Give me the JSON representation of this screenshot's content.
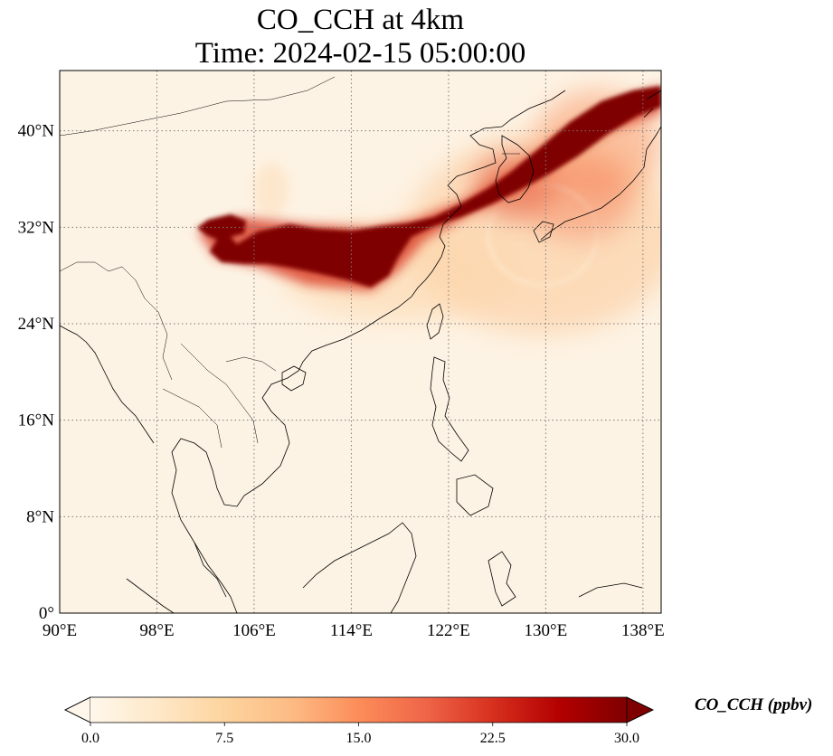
{
  "title": {
    "line1": "CO_CCH at 4km",
    "line2": "Time: 2024-02-15 05:00:00"
  },
  "map": {
    "lon_range": [
      90,
      139.5
    ],
    "lat_range": [
      0,
      45
    ],
    "lon_ticks": [
      {
        "value": 90,
        "label": "90°E"
      },
      {
        "value": 98,
        "label": "98°E"
      },
      {
        "value": 106,
        "label": "106°E"
      },
      {
        "value": 114,
        "label": "114°E"
      },
      {
        "value": 122,
        "label": "122°E"
      },
      {
        "value": 130,
        "label": "130°E"
      },
      {
        "value": 138,
        "label": "138°E"
      }
    ],
    "lat_ticks": [
      {
        "value": 0,
        "label": "0°"
      },
      {
        "value": 8,
        "label": "8°N"
      },
      {
        "value": 16,
        "label": "16°N"
      },
      {
        "value": 24,
        "label": "24°N"
      },
      {
        "value": 32,
        "label": "32°N"
      },
      {
        "value": 40,
        "label": "40°N"
      }
    ],
    "gridlines": true,
    "coastline_color": "#000000",
    "background_color": "#fdf3e4",
    "plume_color": "#7f0000"
  },
  "colorbar": {
    "label": "CO_CCH (ppbv)",
    "min": 0.0,
    "max": 30.0,
    "extend": "both",
    "colormap": "OrRd",
    "colors": [
      "#fff7ec",
      "#fee8c8",
      "#fdd49e",
      "#fdbb84",
      "#fc8d59",
      "#ef6548",
      "#d7301f",
      "#b30000",
      "#7f0000"
    ],
    "ticks": [
      {
        "value": 0.0,
        "label": "0.0"
      },
      {
        "value": 7.5,
        "label": "7.5"
      },
      {
        "value": 15.0,
        "label": "15.0"
      },
      {
        "value": 22.5,
        "label": "22.5"
      },
      {
        "value": 30.0,
        "label": "30.0"
      }
    ]
  }
}
